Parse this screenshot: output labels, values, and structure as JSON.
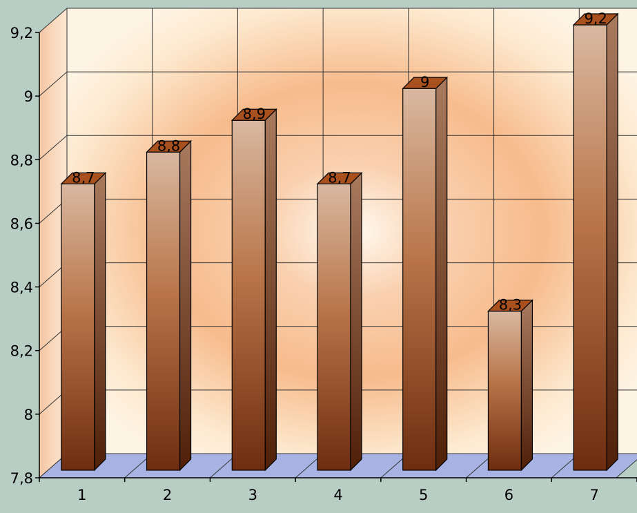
{
  "chart_data": {
    "type": "bar",
    "categories": [
      "1",
      "2",
      "3",
      "4",
      "5",
      "6",
      "7"
    ],
    "values": [
      8.7,
      8.8,
      8.9,
      8.7,
      9.0,
      8.3,
      9.2
    ],
    "value_labels": [
      "8,7",
      "8,8",
      "8,9",
      "8,7",
      "9",
      "8,3",
      "9,2"
    ],
    "y_ticks": [
      7.8,
      8.0,
      8.2,
      8.4,
      8.6,
      8.8,
      9.0,
      9.2
    ],
    "y_tick_labels": [
      "7,8",
      "8",
      "8,2",
      "8,4",
      "8,6",
      "8,8",
      "9",
      "9,2"
    ],
    "ylim": [
      7.8,
      9.2
    ],
    "title": "",
    "xlabel": "",
    "ylabel": "",
    "grid": true,
    "legend": "none",
    "style": "3d-columns",
    "colors": {
      "bar_top": "#d9b8a0",
      "bar_bottom": "#7a3412",
      "bar_cap": "#a8501e",
      "floor": "#a9b3e3",
      "background": "#b8cdc4",
      "wall_outer": "#fbeed8",
      "wall_glow": "#f6b084"
    }
  }
}
